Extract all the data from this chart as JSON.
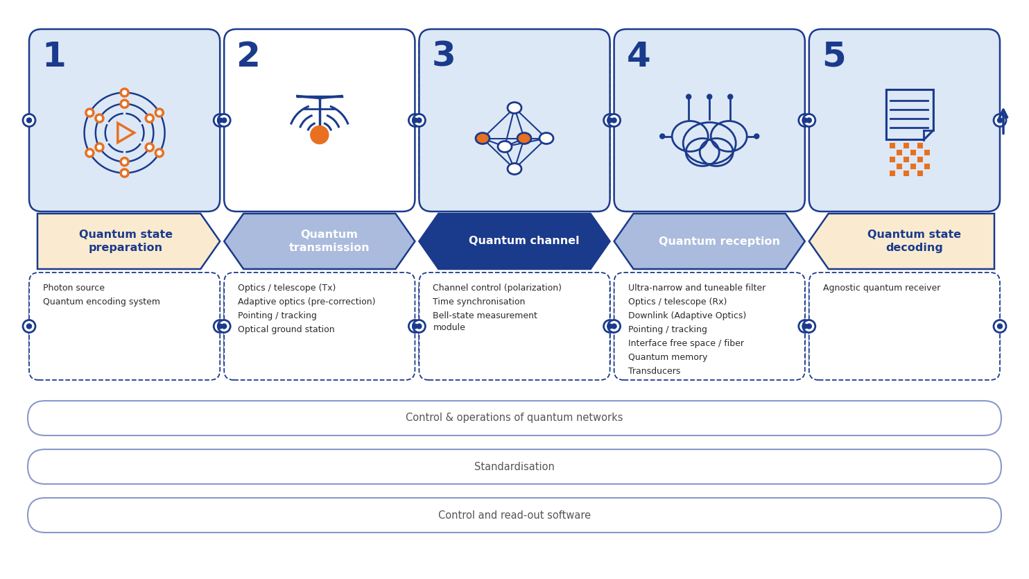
{
  "background_color": "#ffffff",
  "dark_blue": "#1a3a8c",
  "mid_blue": "#8090c8",
  "light_blue": "#dce8f5",
  "orange": "#e87020",
  "peach": "#faebd0",
  "steps": [
    {
      "number": "1",
      "title": "Quantum state\npreparation",
      "arrow_color": "#faebd0",
      "title_color": "#1a3a8c",
      "box_bg": "#dce8f5",
      "items": [
        "Photon source",
        "Quantum encoding system"
      ]
    },
    {
      "number": "2",
      "title": "Quantum\ntransmission",
      "arrow_color": "#aabbdd",
      "title_color": "#ffffff",
      "box_bg": "#ffffff",
      "items": [
        "Optics / telescope (Tx)",
        "Adaptive optics (pre-correction)",
        "Pointing / tracking",
        "Optical ground station"
      ]
    },
    {
      "number": "3",
      "title": "Quantum channel",
      "arrow_color": "#1a3a8c",
      "title_color": "#ffffff",
      "box_bg": "#dce8f5",
      "items": [
        "Channel control (polarization)",
        "Time synchronisation",
        "Bell-state measurement\nmodule"
      ]
    },
    {
      "number": "4",
      "title": "Quantum reception",
      "arrow_color": "#aabbdd",
      "title_color": "#ffffff",
      "box_bg": "#dce8f5",
      "items": [
        "Ultra-narrow and tuneable filter",
        "Optics / telescope (Rx)",
        "Downlink (Adaptive Optics)",
        "Pointing / tracking",
        "Interface free space / fiber",
        "Quantum memory",
        "Transducers"
      ]
    },
    {
      "number": "5",
      "title": "Quantum state\ndecoding",
      "arrow_color": "#faebd0",
      "title_color": "#1a3a8c",
      "box_bg": "#dce8f5",
      "items": [
        "Agnostic quantum receiver"
      ]
    }
  ],
  "bottom_bars": [
    "Control & operations of quantum networks",
    "Standardisation",
    "Control and read-out software"
  ]
}
